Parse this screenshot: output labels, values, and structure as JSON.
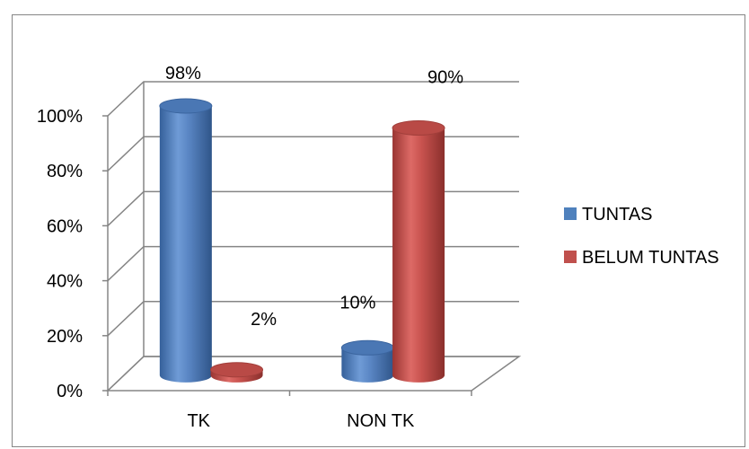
{
  "chart_data": {
    "type": "bar",
    "title": "",
    "xlabel": "",
    "ylabel": "",
    "categories": [
      "TK",
      "NON TK"
    ],
    "series": [
      {
        "name": "TUNTAS",
        "values": [
          98,
          10
        ],
        "labels": [
          "98%",
          "10%"
        ],
        "color": "#4F81BD"
      },
      {
        "name": "BELUM TUNTAS",
        "values": [
          2,
          90
        ],
        "labels": [
          "2%",
          "90%"
        ],
        "color": "#C0504D"
      }
    ],
    "ylim": [
      0,
      100
    ],
    "y_ticks": [
      "0%",
      "20%",
      "40%",
      "60%",
      "80%",
      "100%"
    ],
    "grid": true,
    "legend_position": "right",
    "style": "3d-cylinder"
  }
}
